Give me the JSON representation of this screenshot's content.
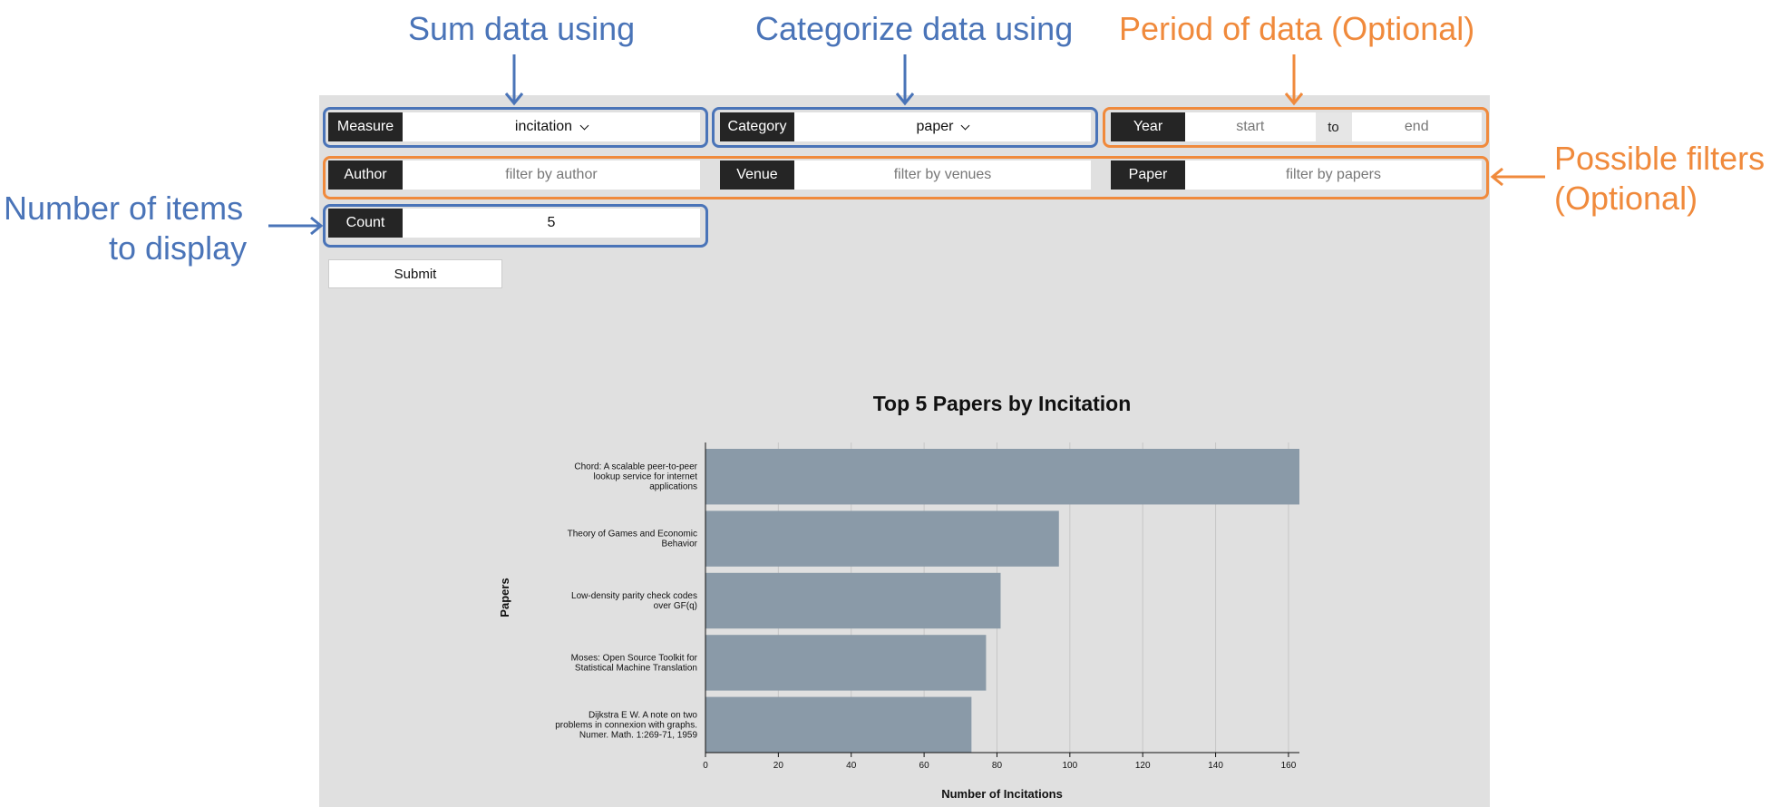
{
  "annotations": {
    "sum": "Sum data using",
    "categorize": "Categorize data using",
    "period": "Period of data (Optional)",
    "filters_line1": "Possible filters",
    "filters_line2": "(Optional)",
    "count_line1": "Number of items",
    "count_line2": "to display",
    "colors": {
      "blue": "#4a74b8",
      "orange": "#f08a3c"
    }
  },
  "form": {
    "measure": {
      "label": "Measure",
      "value": "incitation"
    },
    "category": {
      "label": "Category",
      "value": "paper"
    },
    "year": {
      "label": "Year",
      "start_placeholder": "start",
      "sep": "to",
      "end_placeholder": "end"
    },
    "author": {
      "label": "Author",
      "placeholder": "filter by author"
    },
    "venue": {
      "label": "Venue",
      "placeholder": "filter by venues"
    },
    "paper": {
      "label": "Paper",
      "placeholder": "filter by papers"
    },
    "count": {
      "label": "Count",
      "value": "5"
    },
    "submit_label": "Submit"
  },
  "chart_data": {
    "type": "bar",
    "orientation": "horizontal",
    "title": "Top 5 Papers by Incitation",
    "xlabel": "Number of Incitations",
    "ylabel": "Papers",
    "categories": [
      [
        "Chord: A scalable peer-to-peer",
        "lookup service for internet",
        "applications"
      ],
      [
        "Theory of Games and Economic",
        "Behavior"
      ],
      [
        "Low-density parity check codes",
        "over GF(q)"
      ],
      [
        "Moses: Open Source Toolkit for",
        "Statistical Machine Translation"
      ],
      [
        "Dijkstra E W. A note on two",
        "problems in connexion with graphs.",
        "Numer. Math. 1:269-71, 1959"
      ]
    ],
    "values": [
      163,
      97,
      81,
      77,
      73
    ],
    "xlim": [
      0,
      163
    ],
    "xticks": [
      "0",
      "20",
      "40",
      "60",
      "80",
      "100",
      "120",
      "140",
      "160"
    ],
    "grid": true,
    "bar_color": "#8a9aa8"
  }
}
